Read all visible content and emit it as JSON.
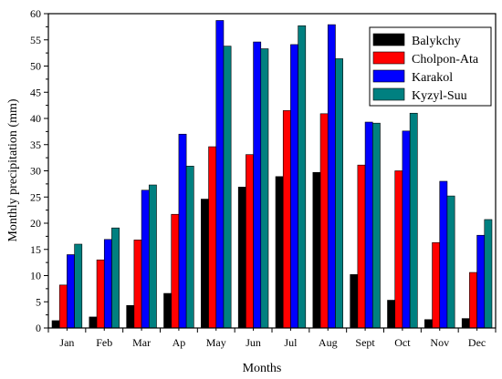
{
  "chart_data": {
    "type": "bar",
    "title": "",
    "xlabel": "Months",
    "ylabel": "Monthly precipitation (mm)",
    "ylim": [
      0,
      60
    ],
    "yticks": [
      "0",
      "5",
      "10",
      "15",
      "20",
      "25",
      "30",
      "35",
      "40",
      "45",
      "50",
      "55",
      "60"
    ],
    "categories": [
      "Jan",
      "Feb",
      "Mar",
      "Ap",
      "May",
      "Jun",
      "Jul",
      "Aug",
      "Sept",
      "Oct",
      "Nov",
      "Dec"
    ],
    "legend_position": "top-right",
    "grid": false,
    "series": [
      {
        "name": "Balykchy",
        "color": "#000000",
        "values": [
          1.4,
          2.1,
          4.3,
          6.6,
          24.6,
          26.9,
          28.9,
          29.7,
          10.2,
          5.3,
          1.6,
          1.8
        ]
      },
      {
        "name": "Cholpon-Ata",
        "color": "#ff0000",
        "values": [
          8.2,
          13.0,
          16.8,
          21.7,
          34.6,
          33.1,
          41.5,
          40.9,
          31.1,
          30.0,
          16.3,
          10.6
        ]
      },
      {
        "name": "Karakol",
        "color": "#0000ff",
        "values": [
          14.0,
          16.9,
          26.3,
          37.0,
          58.7,
          54.6,
          54.1,
          57.9,
          39.3,
          37.6,
          28.0,
          17.7
        ]
      },
      {
        "name": "Kyzyl-Suu",
        "color": "#008080",
        "values": [
          16.0,
          19.1,
          27.3,
          30.9,
          53.8,
          53.3,
          57.7,
          51.4,
          39.1,
          41.0,
          25.2,
          20.7
        ]
      }
    ]
  }
}
